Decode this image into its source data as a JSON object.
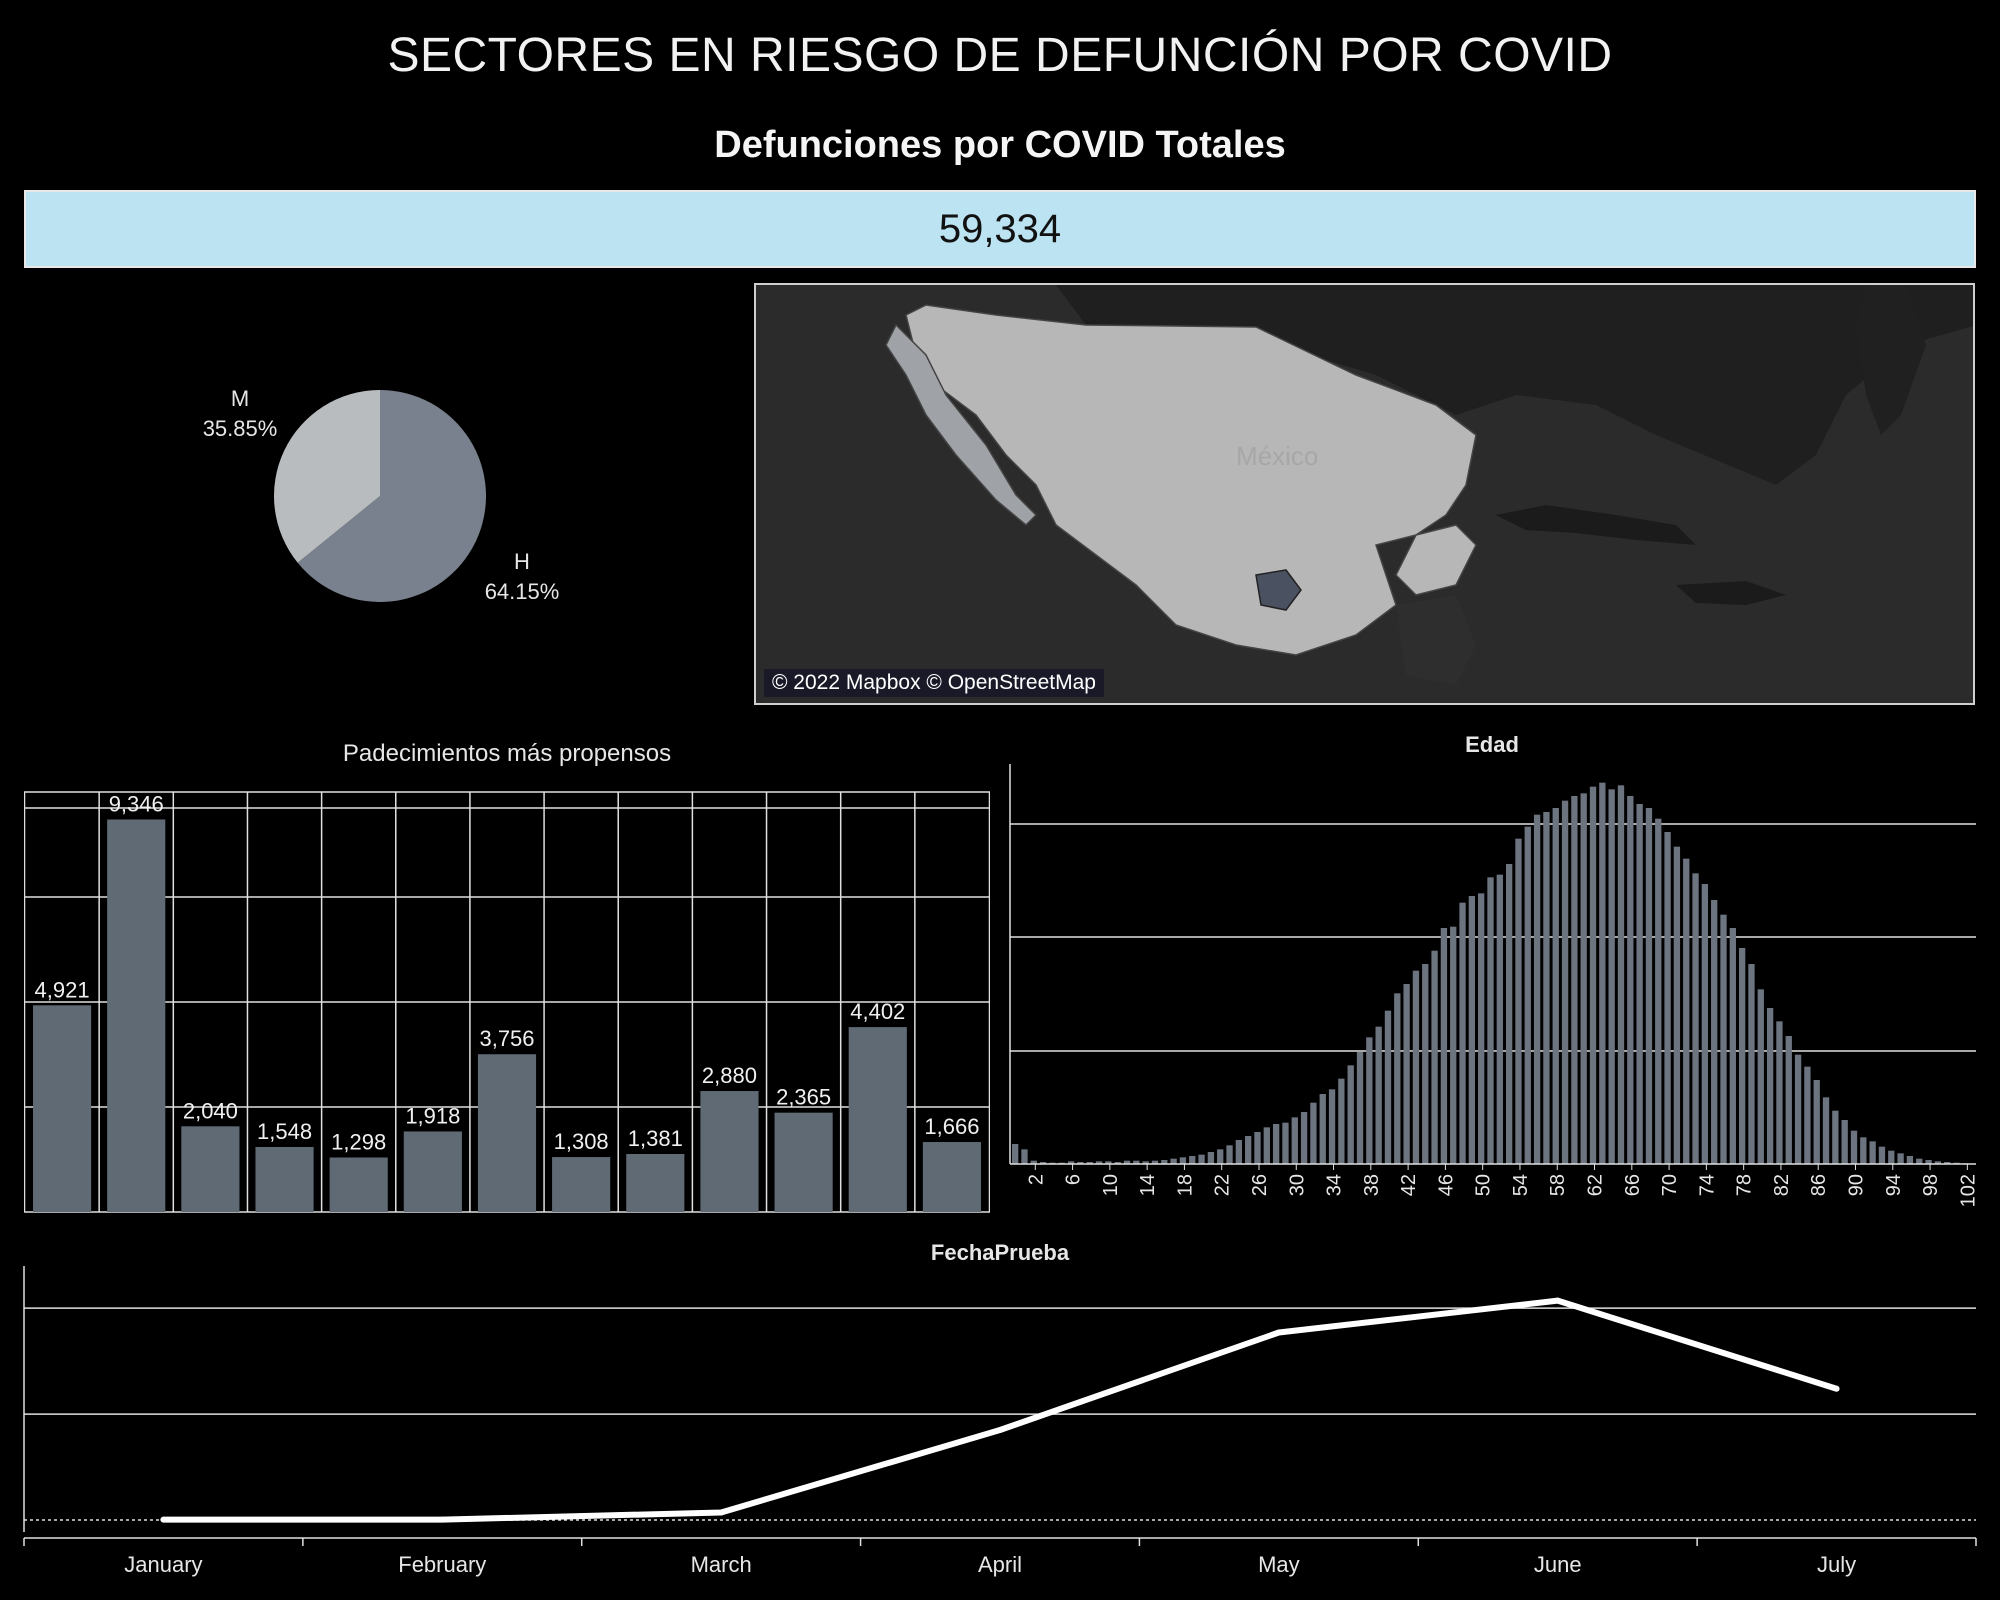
{
  "dashboard": {
    "title": "SECTORES EN RIESGO DE DEFUNCIÓN POR COVID",
    "kpi_title": "Defunciones por COVID Totales",
    "kpi_value": "59,334"
  },
  "map": {
    "credit": "© 2022 Mapbox © OpenStreetMap",
    "region_label": "México"
  },
  "colors": {
    "background": "#000000",
    "kpi_fill": "#bce3f1",
    "bar": "#5f6a75",
    "pie_h": "#79818f",
    "pie_m": "#b9bcbf",
    "line": "#ffffff",
    "grid": "#e0e0e0"
  },
  "chart_data": [
    {
      "id": "sexo",
      "type": "pie",
      "slices": [
        {
          "name": "M",
          "value": 35.85,
          "label": "35.85%"
        },
        {
          "name": "H",
          "value": 64.15,
          "label": "64.15%"
        }
      ]
    },
    {
      "id": "padecimientos",
      "type": "bar",
      "title": "Padecimientos más propensos",
      "values": [
        4921,
        9346,
        2040,
        1548,
        1298,
        1918,
        3756,
        1308,
        1381,
        2880,
        2365,
        4402,
        1666
      ],
      "labels": [
        "4,921",
        "9,346",
        "2,040",
        "1,548",
        "1,298",
        "1,918",
        "3,756",
        "1,308",
        "1,381",
        "2,880",
        "2,365",
        "4,402",
        "1,666"
      ]
    },
    {
      "id": "edad",
      "type": "bar",
      "title": "Edad",
      "x_start": 0,
      "x_tick_labels": [
        "2",
        "6",
        "10",
        "14",
        "18",
        "22",
        "26",
        "30",
        "34",
        "38",
        "42",
        "46",
        "50",
        "54",
        "58",
        "62",
        "66",
        "70",
        "74",
        "78",
        "82",
        "86",
        "90",
        "94",
        "98",
        "102"
      ],
      "values": [
        30,
        22,
        5,
        3,
        2,
        2,
        4,
        3,
        3,
        4,
        4,
        3,
        5,
        5,
        4,
        5,
        6,
        8,
        10,
        12,
        14,
        18,
        22,
        28,
        36,
        42,
        48,
        55,
        60,
        62,
        70,
        78,
        92,
        105,
        112,
        128,
        148,
        168,
        190,
        206,
        230,
        256,
        270,
        290,
        300,
        320,
        354,
        356,
        392,
        402,
        406,
        430,
        434,
        450,
        488,
        506,
        524,
        528,
        534,
        545,
        552,
        556,
        566,
        572,
        562,
        568,
        552,
        540,
        534,
        518,
        498,
        476,
        458,
        436,
        420,
        396,
        374,
        354,
        324,
        300,
        262,
        234,
        214,
        192,
        164,
        146,
        126,
        100,
        80,
        66,
        50,
        40,
        34,
        26,
        20,
        16,
        12,
        8,
        6,
        4,
        3,
        2,
        1
      ]
    },
    {
      "id": "fecha_prueba",
      "type": "line",
      "title": "FechaPrueba",
      "categories": [
        "January",
        "February",
        "March",
        "April",
        "May",
        "June",
        "July"
      ],
      "values": [
        2,
        2,
        40,
        480,
        1000,
        1170,
        700
      ]
    }
  ]
}
